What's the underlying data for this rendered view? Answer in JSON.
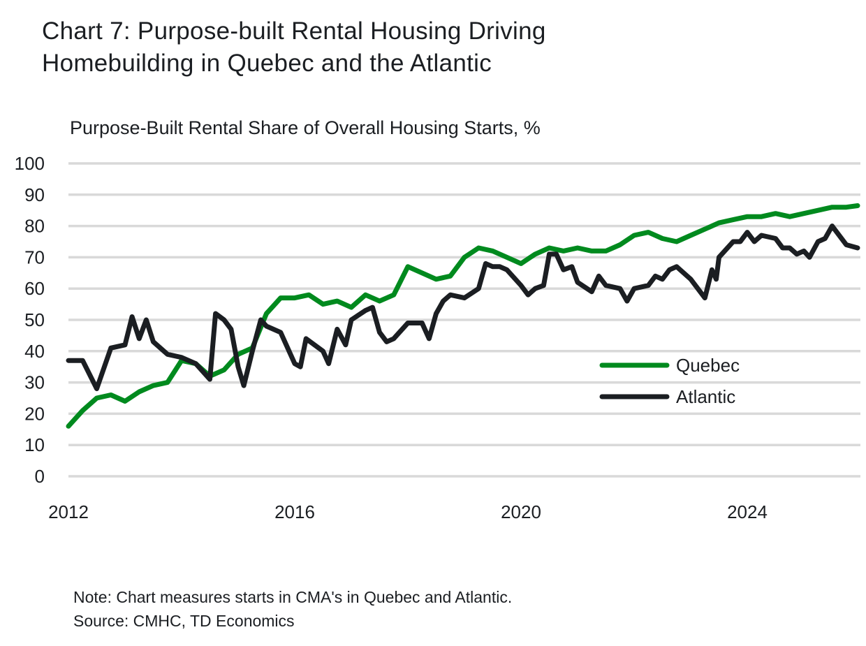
{
  "title_lines": [
    "Chart 7: Purpose-built Rental Housing Driving",
    "Homebuilding in Quebec and the Atlantic"
  ],
  "note": "Note: Chart measures starts in CMA's in Quebec and Atlantic.",
  "source": "Source: CMHC, TD Economics",
  "chart_data": {
    "type": "line",
    "title": "Chart 7: Purpose-built Rental Housing Driving Homebuilding in Quebec and the Atlantic",
    "ylabel": "Purpose-Built Rental Share of Overall Housing Starts, %",
    "xlabel": "",
    "xlim": [
      2012,
      2026
    ],
    "ylim": [
      0,
      100
    ],
    "x_ticks": [
      2012,
      2016,
      2020,
      2024
    ],
    "y_ticks": [
      0,
      10,
      20,
      30,
      40,
      50,
      60,
      70,
      80,
      90,
      100
    ],
    "grid": "horizontal",
    "legend_position": "center-right",
    "series": [
      {
        "name": "Quebec",
        "color": "#008a1e",
        "points": [
          [
            2012.0,
            16
          ],
          [
            2012.25,
            21
          ],
          [
            2012.5,
            25
          ],
          [
            2012.75,
            26
          ],
          [
            2013.0,
            24
          ],
          [
            2013.25,
            27
          ],
          [
            2013.5,
            29
          ],
          [
            2013.75,
            30
          ],
          [
            2014.0,
            37
          ],
          [
            2014.25,
            36
          ],
          [
            2014.5,
            32
          ],
          [
            2014.75,
            34
          ],
          [
            2015.0,
            39
          ],
          [
            2015.25,
            41
          ],
          [
            2015.5,
            52
          ],
          [
            2015.75,
            57
          ],
          [
            2016.0,
            57
          ],
          [
            2016.25,
            58
          ],
          [
            2016.5,
            55
          ],
          [
            2016.75,
            56
          ],
          [
            2017.0,
            54
          ],
          [
            2017.25,
            58
          ],
          [
            2017.5,
            56
          ],
          [
            2017.75,
            58
          ],
          [
            2018.0,
            67
          ],
          [
            2018.25,
            65
          ],
          [
            2018.5,
            63
          ],
          [
            2018.75,
            64
          ],
          [
            2019.0,
            70
          ],
          [
            2019.25,
            73
          ],
          [
            2019.5,
            72
          ],
          [
            2019.75,
            70
          ],
          [
            2020.0,
            68
          ],
          [
            2020.25,
            71
          ],
          [
            2020.5,
            73
          ],
          [
            2020.75,
            72
          ],
          [
            2021.0,
            73
          ],
          [
            2021.25,
            72
          ],
          [
            2021.5,
            72
          ],
          [
            2021.75,
            74
          ],
          [
            2022.0,
            77
          ],
          [
            2022.25,
            78
          ],
          [
            2022.5,
            76
          ],
          [
            2022.75,
            75
          ],
          [
            2023.0,
            77
          ],
          [
            2023.25,
            79
          ],
          [
            2023.5,
            81
          ],
          [
            2023.75,
            82
          ],
          [
            2024.0,
            83
          ],
          [
            2024.25,
            83
          ],
          [
            2024.5,
            84
          ],
          [
            2024.75,
            83
          ],
          [
            2025.0,
            84
          ],
          [
            2025.25,
            85
          ],
          [
            2025.5,
            86
          ],
          [
            2025.75,
            86
          ],
          [
            2025.95,
            86.5
          ]
        ]
      },
      {
        "name": "Atlantic",
        "color": "#1b1e22",
        "points": [
          [
            2012.0,
            37
          ],
          [
            2012.25,
            37
          ],
          [
            2012.5,
            28
          ],
          [
            2012.75,
            41
          ],
          [
            2013.0,
            42
          ],
          [
            2013.125,
            51
          ],
          [
            2013.25,
            44
          ],
          [
            2013.375,
            50
          ],
          [
            2013.5,
            43
          ],
          [
            2013.75,
            39
          ],
          [
            2014.0,
            38
          ],
          [
            2014.25,
            36
          ],
          [
            2014.5,
            31
          ],
          [
            2014.6,
            52
          ],
          [
            2014.75,
            50
          ],
          [
            2014.875,
            47
          ],
          [
            2015.0,
            35
          ],
          [
            2015.1,
            29
          ],
          [
            2015.25,
            40
          ],
          [
            2015.4,
            50
          ],
          [
            2015.5,
            48
          ],
          [
            2015.75,
            46
          ],
          [
            2016.0,
            36
          ],
          [
            2016.1,
            35
          ],
          [
            2016.2,
            44
          ],
          [
            2016.5,
            40
          ],
          [
            2016.6,
            36
          ],
          [
            2016.75,
            47
          ],
          [
            2016.9,
            42
          ],
          [
            2017.0,
            50
          ],
          [
            2017.25,
            53
          ],
          [
            2017.375,
            54
          ],
          [
            2017.5,
            46
          ],
          [
            2017.625,
            43
          ],
          [
            2017.75,
            44
          ],
          [
            2018.0,
            49
          ],
          [
            2018.25,
            49
          ],
          [
            2018.375,
            44
          ],
          [
            2018.5,
            52
          ],
          [
            2018.625,
            56
          ],
          [
            2018.75,
            58
          ],
          [
            2019.0,
            57
          ],
          [
            2019.25,
            60
          ],
          [
            2019.375,
            68
          ],
          [
            2019.5,
            67
          ],
          [
            2019.625,
            67
          ],
          [
            2019.75,
            66
          ],
          [
            2020.0,
            61
          ],
          [
            2020.125,
            58
          ],
          [
            2020.25,
            60
          ],
          [
            2020.4,
            61
          ],
          [
            2020.5,
            71
          ],
          [
            2020.625,
            71
          ],
          [
            2020.75,
            66
          ],
          [
            2020.9,
            67
          ],
          [
            2021.0,
            62
          ],
          [
            2021.25,
            59
          ],
          [
            2021.375,
            64
          ],
          [
            2021.5,
            61
          ],
          [
            2021.75,
            60
          ],
          [
            2021.875,
            56
          ],
          [
            2022.0,
            60
          ],
          [
            2022.25,
            61
          ],
          [
            2022.375,
            64
          ],
          [
            2022.5,
            63
          ],
          [
            2022.625,
            66
          ],
          [
            2022.75,
            67
          ],
          [
            2023.0,
            63
          ],
          [
            2023.25,
            57
          ],
          [
            2023.375,
            66
          ],
          [
            2023.45,
            63
          ],
          [
            2023.5,
            70
          ],
          [
            2023.75,
            75
          ],
          [
            2023.875,
            75
          ],
          [
            2024.0,
            78
          ],
          [
            2024.125,
            75
          ],
          [
            2024.25,
            77
          ],
          [
            2024.5,
            76
          ],
          [
            2024.625,
            73
          ],
          [
            2024.75,
            73
          ],
          [
            2024.875,
            71
          ],
          [
            2025.0,
            72
          ],
          [
            2025.1,
            70
          ],
          [
            2025.25,
            75
          ],
          [
            2025.375,
            76
          ],
          [
            2025.5,
            80
          ],
          [
            2025.75,
            74
          ],
          [
            2025.95,
            73
          ]
        ]
      }
    ]
  }
}
